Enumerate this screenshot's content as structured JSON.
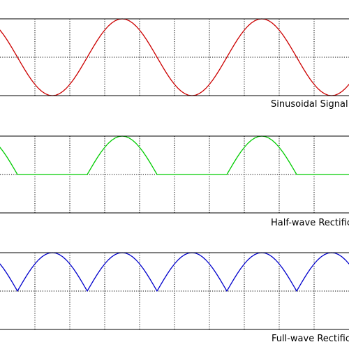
{
  "chart_data": [
    {
      "type": "line",
      "title": "Sinusoidal Signal",
      "series": [
        {
          "color": "#cc0000",
          "x": [
            -0.5,
            -0.45,
            -0.4,
            -0.35,
            -0.3,
            -0.25,
            -0.2,
            -0.15,
            -0.1,
            -0.05,
            0,
            0.05,
            0.1,
            0.15,
            0.2,
            0.25,
            0.3,
            0.35,
            0.4,
            0.45,
            0.5,
            0.55,
            0.6,
            0.65,
            0.7,
            0.75,
            0.8,
            0.85,
            0.9,
            0.95,
            1,
            1.05,
            1.1,
            1.15,
            1.2,
            1.25,
            1.3,
            1.35,
            1.4,
            1.45,
            1.5,
            1.55,
            1.6,
            1.65,
            1.7,
            1.75,
            1.8,
            1.85,
            1.9,
            1.95,
            2,
            2.05,
            2.1,
            2.15,
            2.2,
            2.25,
            2.3,
            2.35,
            2.4,
            2.45,
            2.5,
            2.55,
            2.6,
            2.65,
            2.7,
            2.75,
            2.8,
            2.85,
            2.9,
            2.95,
            3,
            3.05,
            3.1,
            3.15,
            3.2,
            3.25,
            3.3,
            3.35,
            3.4,
            3.45,
            3.5,
            3.55,
            3.6,
            3.65,
            3.7,
            3.75,
            3.8,
            3.85,
            3.9,
            3.95,
            4,
            4.05,
            4.1,
            4.15,
            4.2,
            4.25,
            4.3,
            4.35,
            4.4,
            4.45,
            4.5
          ],
          "y": [
            0.707,
            0.588,
            0.454,
            0.309,
            0.156,
            0,
            -0.156,
            -0.309,
            -0.454,
            -0.588,
            -0.707,
            -0.809,
            -0.891,
            -0.951,
            -0.988,
            -1,
            -0.988,
            -0.951,
            -0.891,
            -0.809,
            -0.707,
            -0.588,
            -0.454,
            -0.309,
            -0.156,
            0,
            0.156,
            0.309,
            0.454,
            0.588,
            0.707,
            0.809,
            0.891,
            0.951,
            0.988,
            1,
            0.988,
            0.951,
            0.891,
            0.809,
            0.707,
            0.588,
            0.454,
            0.309,
            0.156,
            0,
            -0.156,
            -0.309,
            -0.454,
            -0.588,
            -0.707,
            -0.809,
            -0.891,
            -0.951,
            -0.988,
            -1,
            -0.988,
            -0.951,
            -0.891,
            -0.809,
            -0.707,
            -0.588,
            -0.454,
            -0.309,
            -0.156,
            0,
            0.156,
            0.309,
            0.454,
            0.588,
            0.707,
            0.809,
            0.891,
            0.951,
            0.988,
            1,
            0.988,
            0.951,
            0.891,
            0.809,
            0.707,
            0.588,
            0.454,
            0.309,
            0.156,
            0,
            -0.156,
            -0.309,
            -0.454,
            -0.588,
            -0.707,
            -0.809,
            -0.891,
            -0.951,
            -0.988,
            -1,
            -0.988,
            -0.951,
            -0.891,
            -0.809,
            -0.707
          ]
        }
      ],
      "xlim": [
        -0.5,
        4.5
      ],
      "ylim": [
        -1,
        1
      ],
      "xticks": [
        0,
        0.5,
        1,
        1.5,
        2,
        2.5,
        3,
        3.5,
        4
      ],
      "yticks": [
        0
      ],
      "grid": true
    },
    {
      "type": "line",
      "title": "Half-wave Rectific",
      "series": [
        {
          "color": "#00cc00",
          "x": [
            -0.5,
            -0.45,
            -0.4,
            -0.35,
            -0.3,
            -0.25,
            -0.2,
            -0.15,
            -0.1,
            -0.05,
            0,
            0.05,
            0.1,
            0.15,
            0.2,
            0.25,
            0.3,
            0.35,
            0.4,
            0.45,
            0.5,
            0.55,
            0.6,
            0.65,
            0.7,
            0.75,
            0.8,
            0.85,
            0.9,
            0.95,
            1,
            1.05,
            1.1,
            1.15,
            1.2,
            1.25,
            1.3,
            1.35,
            1.4,
            1.45,
            1.5,
            1.55,
            1.6,
            1.65,
            1.7,
            1.75,
            1.8,
            1.85,
            1.9,
            1.95,
            2,
            2.05,
            2.1,
            2.15,
            2.2,
            2.25,
            2.3,
            2.35,
            2.4,
            2.45,
            2.5,
            2.55,
            2.6,
            2.65,
            2.7,
            2.75,
            2.8,
            2.85,
            2.9,
            2.95,
            3,
            3.05,
            3.1,
            3.15,
            3.2,
            3.25,
            3.3,
            3.35,
            3.4,
            3.45,
            3.5,
            3.55,
            3.6,
            3.65,
            3.7,
            3.75,
            3.8,
            3.85,
            3.9,
            3.95,
            4,
            4.05,
            4.1,
            4.15,
            4.2,
            4.25,
            4.3,
            4.35,
            4.4,
            4.45,
            4.5
          ],
          "y": [
            0.707,
            0.588,
            0.454,
            0.309,
            0.156,
            0,
            0,
            0,
            0,
            0,
            0,
            0,
            0,
            0,
            0,
            0,
            0,
            0,
            0,
            0,
            0,
            0,
            0,
            0,
            0,
            0,
            0.156,
            0.309,
            0.454,
            0.588,
            0.707,
            0.809,
            0.891,
            0.951,
            0.988,
            1,
            0.988,
            0.951,
            0.891,
            0.809,
            0.707,
            0.588,
            0.454,
            0.309,
            0.156,
            0,
            0,
            0,
            0,
            0,
            0,
            0,
            0,
            0,
            0,
            0,
            0,
            0,
            0,
            0,
            0,
            0,
            0,
            0,
            0,
            0,
            0.156,
            0.309,
            0.454,
            0.588,
            0.707,
            0.809,
            0.891,
            0.951,
            0.988,
            1,
            0.988,
            0.951,
            0.891,
            0.809,
            0.707,
            0.588,
            0.454,
            0.309,
            0.156,
            0,
            0,
            0,
            0,
            0,
            0,
            0,
            0,
            0,
            0,
            0,
            0,
            0,
            0,
            0,
            0
          ]
        }
      ],
      "xlim": [
        -0.5,
        4.5
      ],
      "ylim": [
        -1,
        1
      ],
      "xticks": [
        0,
        0.5,
        1,
        1.5,
        2,
        2.5,
        3,
        3.5,
        4
      ],
      "yticks": [
        0
      ],
      "grid": true
    },
    {
      "type": "line",
      "title": "Full-wave Rectific",
      "series": [
        {
          "color": "#0000cc",
          "x": [
            -0.5,
            -0.45,
            -0.4,
            -0.35,
            -0.3,
            -0.25,
            -0.2,
            -0.15,
            -0.1,
            -0.05,
            0,
            0.05,
            0.1,
            0.15,
            0.2,
            0.25,
            0.3,
            0.35,
            0.4,
            0.45,
            0.5,
            0.55,
            0.6,
            0.65,
            0.7,
            0.75,
            0.8,
            0.85,
            0.9,
            0.95,
            1,
            1.05,
            1.1,
            1.15,
            1.2,
            1.25,
            1.3,
            1.35,
            1.4,
            1.45,
            1.5,
            1.55,
            1.6,
            1.65,
            1.7,
            1.75,
            1.8,
            1.85,
            1.9,
            1.95,
            2,
            2.05,
            2.1,
            2.15,
            2.2,
            2.25,
            2.3,
            2.35,
            2.4,
            2.45,
            2.5,
            2.55,
            2.6,
            2.65,
            2.7,
            2.75,
            2.8,
            2.85,
            2.9,
            2.95,
            3,
            3.05,
            3.1,
            3.15,
            3.2,
            3.25,
            3.3,
            3.35,
            3.4,
            3.45,
            3.5,
            3.55,
            3.6,
            3.65,
            3.7,
            3.75,
            3.8,
            3.85,
            3.9,
            3.95,
            4,
            4.05,
            4.1,
            4.15,
            4.2,
            4.25,
            4.3,
            4.35,
            4.4,
            4.45,
            4.5
          ],
          "y": [
            0.707,
            0.588,
            0.454,
            0.309,
            0.156,
            0,
            0.156,
            0.309,
            0.454,
            0.588,
            0.707,
            0.809,
            0.891,
            0.951,
            0.988,
            1,
            0.988,
            0.951,
            0.891,
            0.809,
            0.707,
            0.588,
            0.454,
            0.309,
            0.156,
            0,
            0.156,
            0.309,
            0.454,
            0.588,
            0.707,
            0.809,
            0.891,
            0.951,
            0.988,
            1,
            0.988,
            0.951,
            0.891,
            0.809,
            0.707,
            0.588,
            0.454,
            0.309,
            0.156,
            0,
            0.156,
            0.309,
            0.454,
            0.588,
            0.707,
            0.809,
            0.891,
            0.951,
            0.988,
            1,
            0.988,
            0.951,
            0.891,
            0.809,
            0.707,
            0.588,
            0.454,
            0.309,
            0.156,
            0,
            0.156,
            0.309,
            0.454,
            0.588,
            0.707,
            0.809,
            0.891,
            0.951,
            0.988,
            1,
            0.988,
            0.951,
            0.891,
            0.809,
            0.707,
            0.588,
            0.454,
            0.309,
            0.156,
            0,
            0.156,
            0.309,
            0.454,
            0.588,
            0.707,
            0.809,
            0.891,
            0.951,
            0.988,
            1,
            0.988,
            0.951,
            0.891,
            0.809,
            0.707
          ]
        }
      ],
      "xlim": [
        -0.5,
        4.5
      ],
      "ylim": [
        -1,
        1
      ],
      "xticks": [
        0,
        0.5,
        1,
        1.5,
        2,
        2.5,
        3,
        3.5,
        4
      ],
      "yticks": [
        0
      ],
      "grid": true
    }
  ]
}
